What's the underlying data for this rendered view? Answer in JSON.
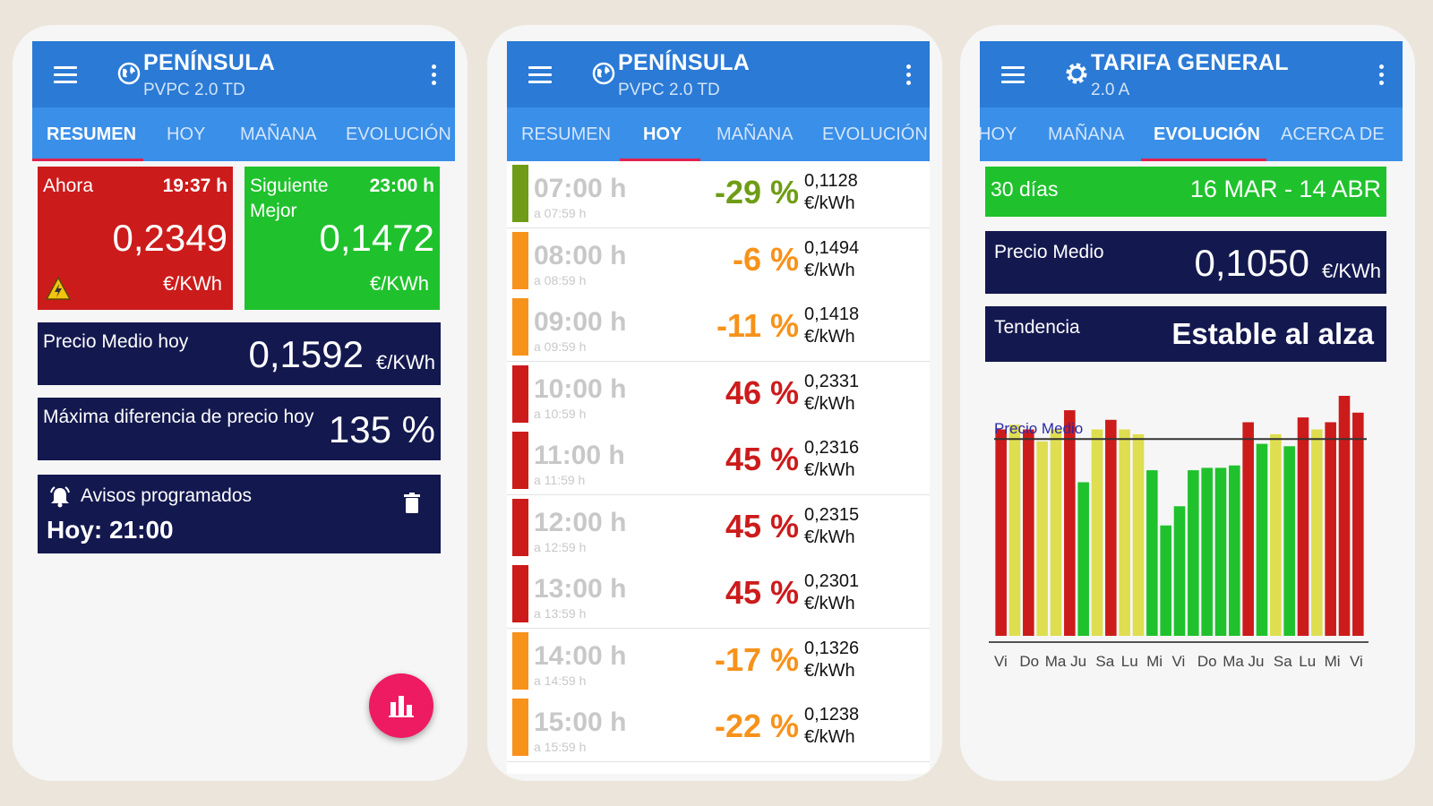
{
  "colors": {
    "appbar": "#2a7ad6",
    "tabs": "#3a8fe8",
    "navy": "#13184f",
    "red": "#cc1b1b",
    "orange": "#f7921a",
    "olive": "#6f9c16",
    "green": "#1fc22c",
    "yellow": "#dede50",
    "fab": "#ee1a62"
  },
  "panel1": {
    "title": "PENÍNSULA",
    "subtitle": "PVPC 2.0 TD",
    "tabs": [
      "RESUMEN",
      "HOY",
      "MAÑANA",
      "EVOLUCIÓN"
    ],
    "now": {
      "label": "Ahora",
      "time": "19:37 h",
      "value": "0,2349",
      "unit": "€/KWh",
      "icon": "warning-icon"
    },
    "next": {
      "label_line1": "Siguiente",
      "label_line2": "Mejor",
      "time": "23:00 h",
      "value": "0,1472",
      "unit": "€/KWh"
    },
    "avg": {
      "label": "Precio Medio hoy",
      "value": "0,1592",
      "unit": "€/KWh"
    },
    "maxdiff": {
      "label": "Máxima diferencia de precio hoy",
      "value": "135 %"
    },
    "alerts": {
      "label": "Avisos programados",
      "value": "Hoy: 21:00",
      "icon": "bell-icon",
      "delete_icon": "trash-icon"
    },
    "fab_icon": "bar-chart-icon"
  },
  "panel2": {
    "title": "PENÍNSULA",
    "subtitle": "PVPC 2.0 TD",
    "tabs": [
      "RESUMEN",
      "HOY",
      "MAÑANA",
      "EVOLUCIÓN"
    ],
    "rows": [
      {
        "hour": "07:00 h",
        "until": "a 07:59 h",
        "pct": "-29 %",
        "price": "0,1128",
        "unit": "€/kWh",
        "level": "olive"
      },
      {
        "hour": "08:00 h",
        "until": "a 08:59 h",
        "pct": "-6 %",
        "price": "0,1494",
        "unit": "€/kWh",
        "level": "orange"
      },
      {
        "hour": "09:00 h",
        "until": "a 09:59 h",
        "pct": "-11 %",
        "price": "0,1418",
        "unit": "€/kWh",
        "level": "orange"
      },
      {
        "hour": "10:00 h",
        "until": "a 10:59 h",
        "pct": "46 %",
        "price": "0,2331",
        "unit": "€/kWh",
        "level": "red"
      },
      {
        "hour": "11:00 h",
        "until": "a 11:59 h",
        "pct": "45 %",
        "price": "0,2316",
        "unit": "€/kWh",
        "level": "red"
      },
      {
        "hour": "12:00 h",
        "until": "a 12:59 h",
        "pct": "45 %",
        "price": "0,2315",
        "unit": "€/kWh",
        "level": "red"
      },
      {
        "hour": "13:00 h",
        "until": "a 13:59 h",
        "pct": "45 %",
        "price": "0,2301",
        "unit": "€/kWh",
        "level": "red"
      },
      {
        "hour": "14:00 h",
        "until": "a 14:59 h",
        "pct": "-17 %",
        "price": "0,1326",
        "unit": "€/kWh",
        "level": "orange"
      },
      {
        "hour": "15:00 h",
        "until": "a 15:59 h",
        "pct": "-22 %",
        "price": "0,1238",
        "unit": "€/kWh",
        "level": "orange"
      }
    ]
  },
  "panel3": {
    "title": "TARIFA GENERAL",
    "subtitle": "2.0 A",
    "tabs": [
      "HOY",
      "MAÑANA",
      "EVOLUCIÓN",
      "ACERCA DE"
    ],
    "period": {
      "label": "30 días",
      "range": "16 MAR - 14 ABR"
    },
    "avg": {
      "label": "Precio Medio",
      "value": "0,1050",
      "unit": "€/KWh"
    },
    "trend": {
      "label": "Tendencia",
      "value": "Estable al alza"
    }
  },
  "chart_data": {
    "type": "bar",
    "title": "",
    "ylim": [
      0,
      100
    ],
    "reference_line": {
      "label": "Precio Medio",
      "value": 82
    },
    "values": [
      86,
      88,
      86,
      81,
      86,
      94,
      64,
      86,
      90,
      86,
      84,
      69,
      46,
      54,
      69,
      70,
      70,
      71,
      89,
      80,
      84,
      79,
      91,
      86,
      89,
      100,
      93
    ],
    "levels": [
      "red",
      "yellow",
      "red",
      "yellow",
      "yellow",
      "red",
      "green",
      "yellow",
      "red",
      "yellow",
      "yellow",
      "green",
      "green",
      "green",
      "green",
      "green",
      "green",
      "green",
      "red",
      "green",
      "yellow",
      "green",
      "red",
      "yellow",
      "red",
      "red",
      "red"
    ],
    "x_tick_labels": [
      "Vi",
      "Do",
      "Ma",
      "Ju",
      "Sa",
      "Lu",
      "Mi",
      "Vi",
      "Do",
      "Ma",
      "Ju",
      "Sa",
      "Lu",
      "Mi",
      "Vi"
    ]
  }
}
